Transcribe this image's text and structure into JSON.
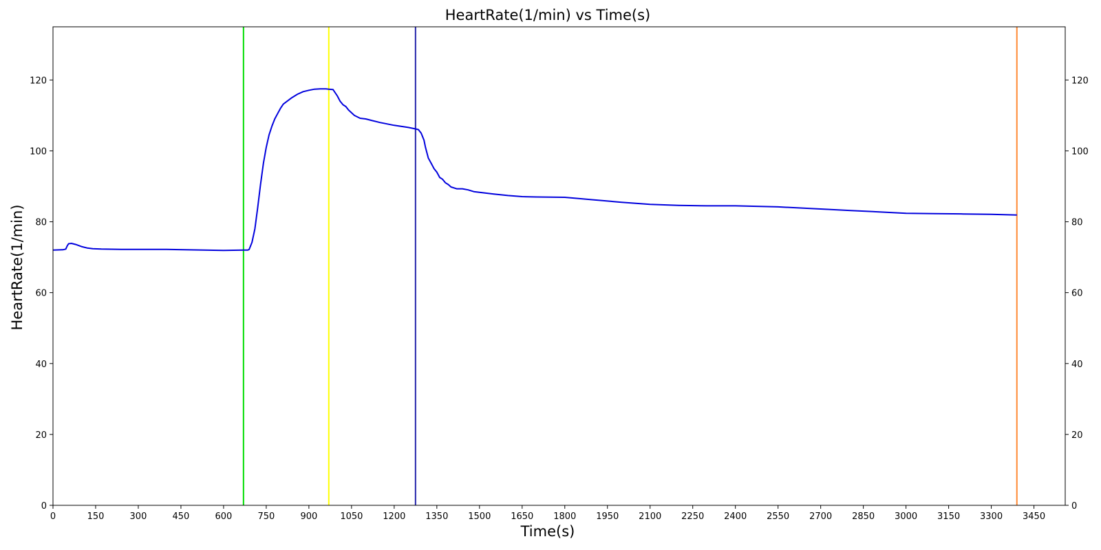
{
  "chart_data": {
    "type": "line",
    "title": "HeartRate(1/min) vs Time(s)",
    "xlabel": "Time(s)",
    "ylabel": "HeartRate(1/min)",
    "xlim": [
      0,
      3560
    ],
    "ylim": [
      0,
      135
    ],
    "xticks": [
      0,
      150,
      300,
      450,
      600,
      750,
      900,
      1050,
      1200,
      1350,
      1500,
      1650,
      1800,
      1950,
      2100,
      2250,
      2400,
      2550,
      2700,
      2850,
      3000,
      3150,
      3300,
      3450
    ],
    "yticks": [
      0,
      20,
      40,
      60,
      80,
      100,
      120
    ],
    "grid": false,
    "right_axis_mirrored": true,
    "series": [
      {
        "color": "#0000dd",
        "x": [
          0,
          35,
          45,
          50,
          55,
          65,
          80,
          100,
          120,
          140,
          170,
          240,
          400,
          600,
          670,
          685,
          690,
          700,
          710,
          720,
          730,
          740,
          750,
          760,
          770,
          780,
          790,
          800,
          810,
          820,
          840,
          860,
          880,
          900,
          920,
          940,
          960,
          970,
          985,
          1000,
          1010,
          1020,
          1030,
          1040,
          1060,
          1080,
          1100,
          1120,
          1150,
          1200,
          1250,
          1275,
          1285,
          1295,
          1305,
          1310,
          1320,
          1330,
          1340,
          1350,
          1360,
          1370,
          1380,
          1390,
          1400,
          1420,
          1440,
          1460,
          1480,
          1500,
          1550,
          1600,
          1650,
          1700,
          1800,
          1900,
          2000,
          2100,
          2200,
          2300,
          2400,
          2550,
          2700,
          2800,
          2900,
          3000,
          3100,
          3200,
          3300,
          3390
        ],
        "y": [
          72,
          72.1,
          72.3,
          73.2,
          73.8,
          73.9,
          73.6,
          73,
          72.6,
          72.4,
          72.3,
          72.2,
          72.2,
          71.9,
          72,
          72,
          72.2,
          74.2,
          78,
          84,
          90.5,
          96.5,
          101,
          104.5,
          107,
          109,
          110.5,
          112,
          113.2,
          113.8,
          115,
          116,
          116.7,
          117.1,
          117.4,
          117.5,
          117.5,
          117.4,
          117.3,
          115.5,
          114,
          113,
          112.5,
          111.5,
          110,
          109.2,
          109,
          108.6,
          108,
          107.2,
          106.6,
          106.2,
          106,
          105,
          103,
          101,
          98,
          96.5,
          95,
          94,
          92.5,
          92,
          91,
          90.5,
          89.8,
          89.3,
          89.3,
          89,
          88.5,
          88.3,
          87.8,
          87.4,
          87.1,
          87,
          86.9,
          86.2,
          85.5,
          84.9,
          84.6,
          84.5,
          84.5,
          84.2,
          83.6,
          83.2,
          82.8,
          82.4,
          82.3,
          82.2,
          82.1,
          81.9
        ]
      }
    ],
    "vlines": [
      {
        "x": 670,
        "color": "#00dd00"
      },
      {
        "x": 970,
        "color": "#ffff00"
      },
      {
        "x": 1275,
        "color": "#2222aa"
      },
      {
        "x": 3390,
        "color": "#ff8833"
      }
    ]
  }
}
